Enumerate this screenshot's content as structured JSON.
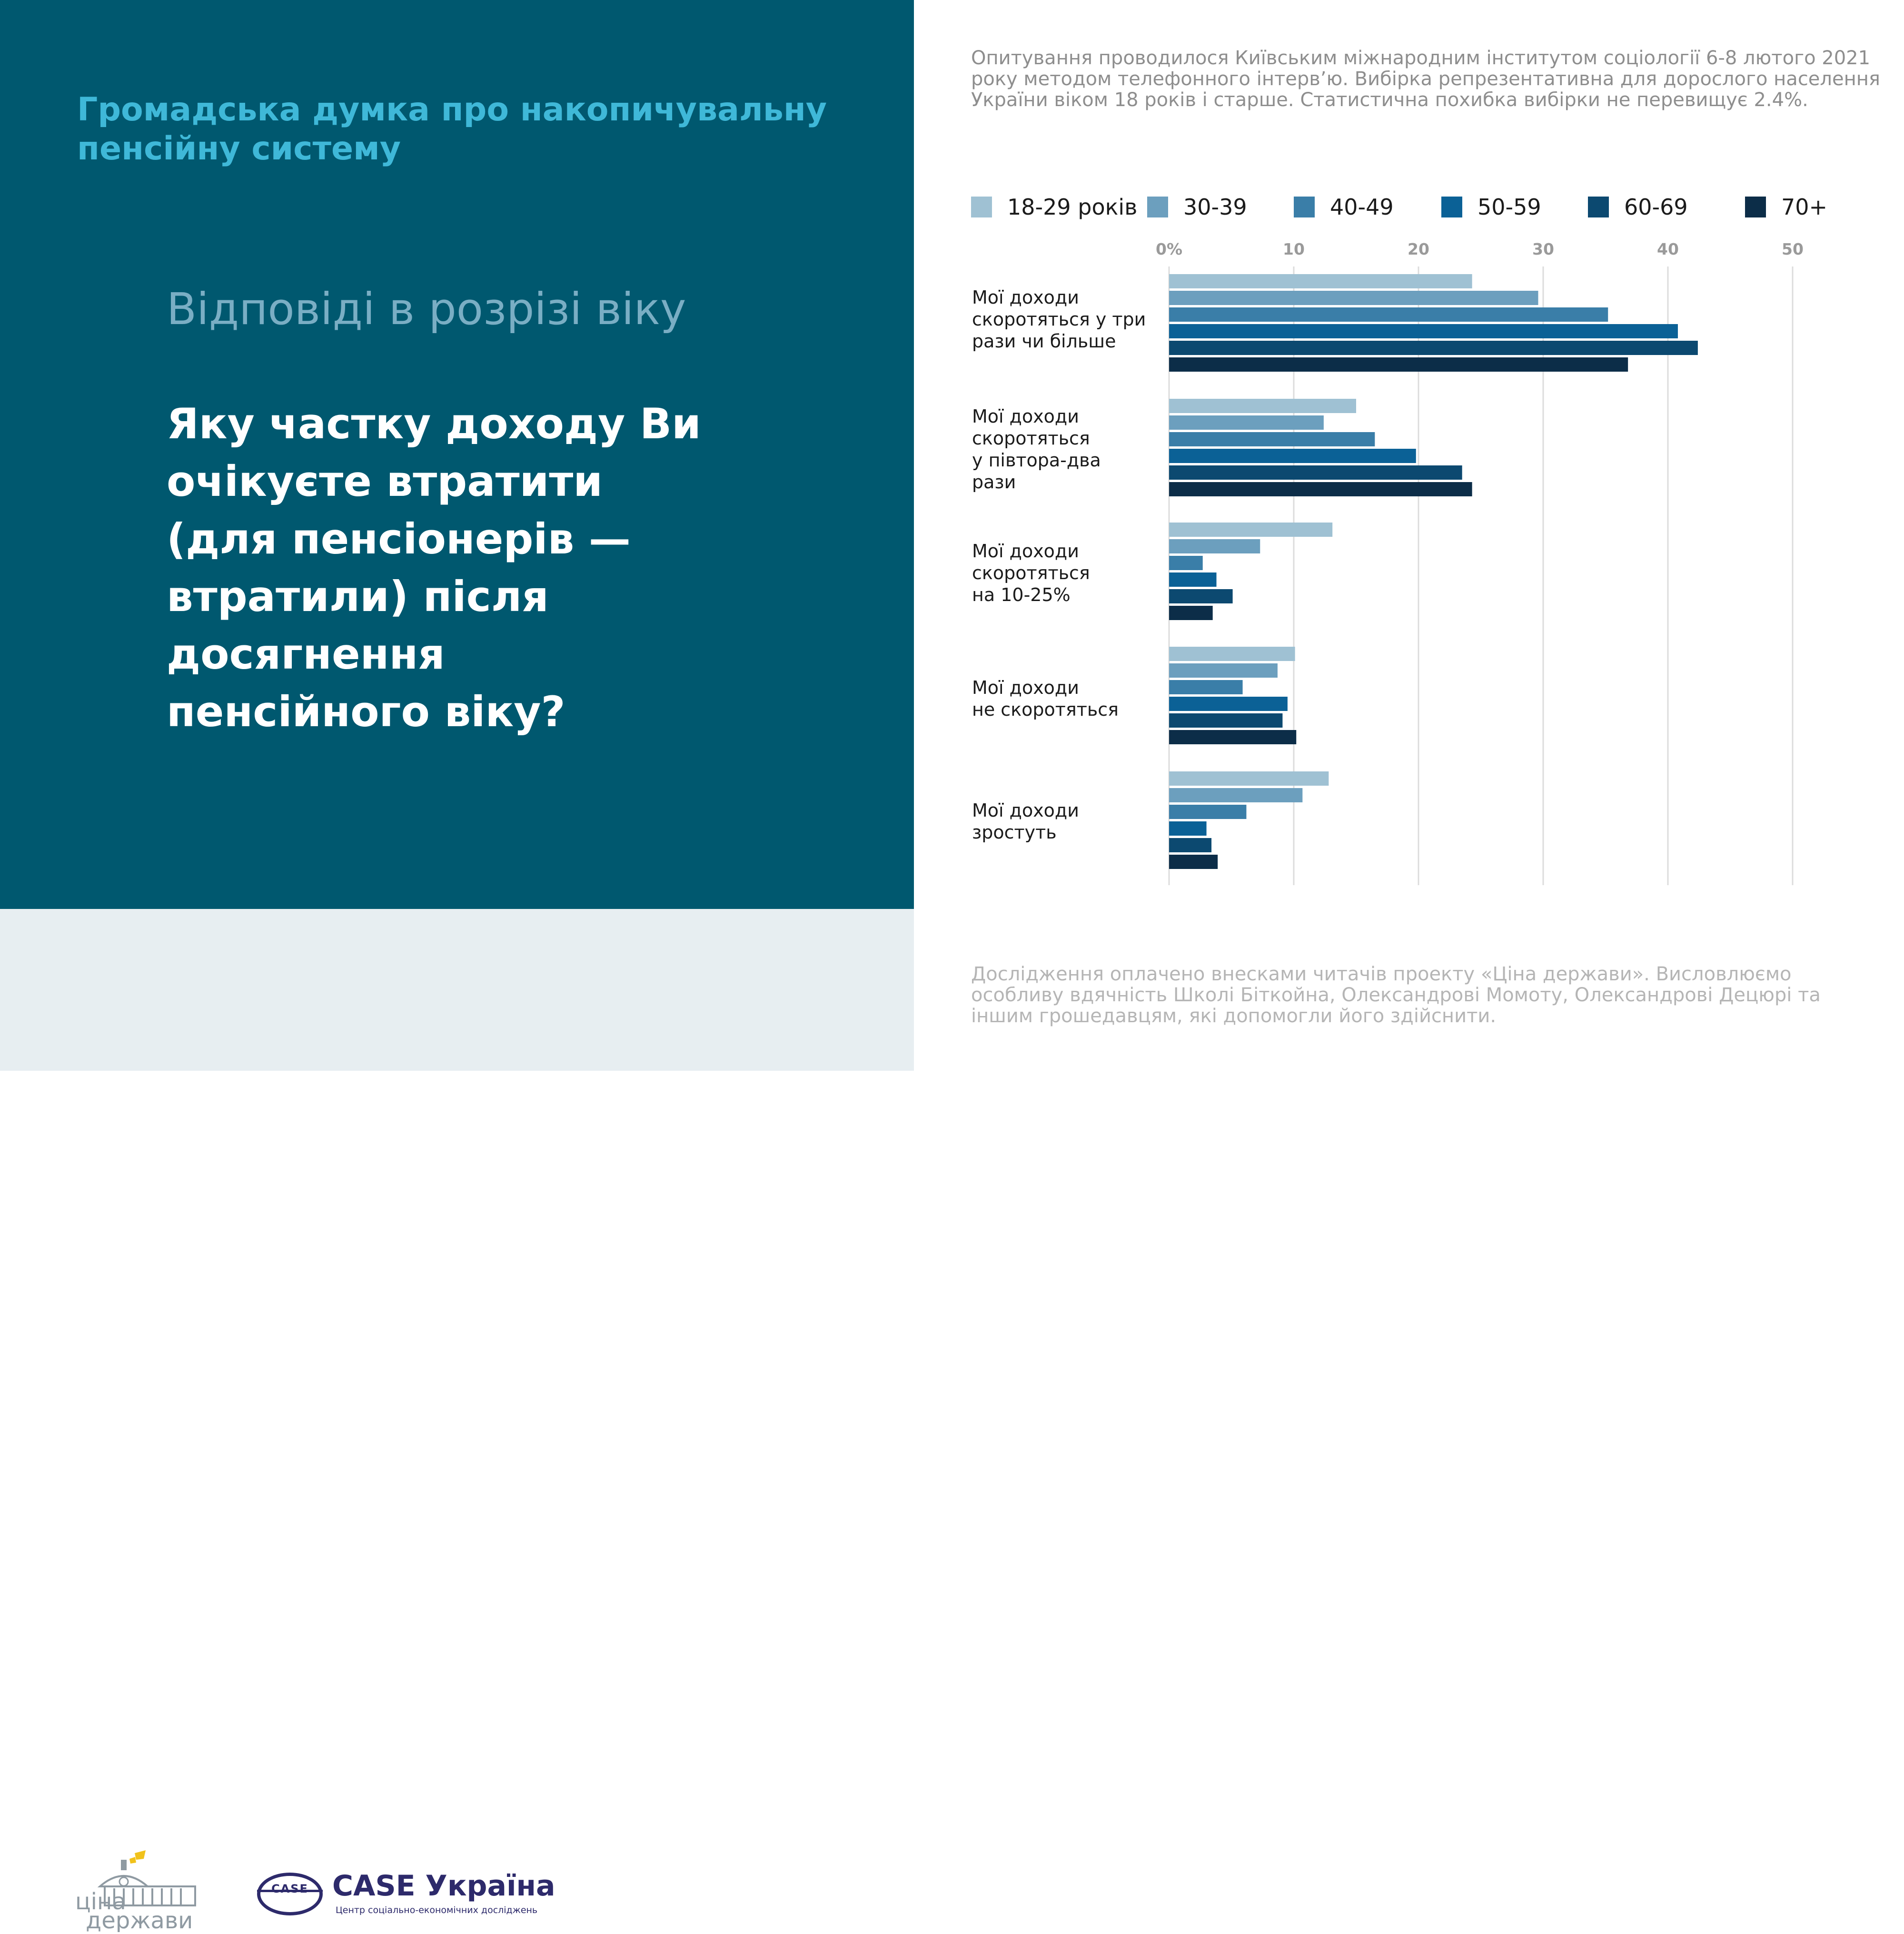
{
  "header": {
    "title_lines": [
      "Громадська думка про накопичувальну",
      "пенсійну систему"
    ]
  },
  "subtitle": "Відповіді в розрізі віку",
  "question_lines": [
    "Яку частку доходу Ви",
    "очікуєте втратити",
    "(для пенсіонерів —",
    "втратили) після",
    "досягнення",
    "пенсійного віку?"
  ],
  "method_note": "Опитування проводилося Київським міжнародним інститутом соціології 6-8 лютого 2021 року методом телефонного інтерв’ю. Вибірка репрезентативна для дорослого населення України віком 18 років і старше. Статистична похибка вибірки не перевищує 2.4%.",
  "footer_note": "Дослідження оплачено внесками читачів проекту «Ціна держави». Висловлюємо особливу вдячність Школі Біткойна, Олександрові Момоту, Олександрові Децюрі та іншим грошедавцям, які допомогли його здійснити.",
  "logos": {
    "cina_line1": "ціна",
    "cina_line2": "держави",
    "case_oval": "CASE",
    "case_name": "CASE Україна",
    "case_tagline": "Центр соціально-економічних досліджень"
  },
  "colors": {
    "panel": "#00586f",
    "title_accent": "#3fb8d8",
    "subtitle": "#7aaec4",
    "footer_bg": "#e7eef1"
  },
  "chart_data": {
    "type": "bar",
    "orientation": "horizontal",
    "xlim": [
      0,
      50
    ],
    "x_ticks": [
      "0%",
      "10",
      "20",
      "30",
      "40",
      "50"
    ],
    "grid": true,
    "legend_position": "top",
    "categories": [
      [
        "Мої доходи",
        "скоротяться у три",
        "рази чи більше"
      ],
      [
        "Мої доходи",
        "скоротяться",
        "у півтора-два",
        "рази"
      ],
      [
        "Мої доходи",
        "скоротяться",
        "на 10-25%"
      ],
      [
        "Мої доходи",
        "не скоротяться"
      ],
      [
        "Мої доходи",
        "зростуть"
      ]
    ],
    "series": [
      {
        "name": "18-29 років",
        "color": "#9fc1d3",
        "values": [
          24.3,
          15.0,
          13.1,
          10.1,
          12.8
        ]
      },
      {
        "name": "30-39",
        "color": "#6c9fbe",
        "values": [
          29.6,
          12.4,
          7.3,
          8.7,
          10.7
        ]
      },
      {
        "name": "40-49",
        "color": "#3a7ea8",
        "values": [
          35.2,
          16.5,
          2.7,
          5.9,
          6.2
        ]
      },
      {
        "name": "50-59",
        "color": "#0b6196",
        "values": [
          40.8,
          19.8,
          3.8,
          9.5,
          3.0
        ]
      },
      {
        "name": "60-69",
        "color": "#0c4970",
        "values": [
          42.4,
          23.5,
          5.1,
          9.1,
          3.4
        ]
      },
      {
        "name": "70+",
        "color": "#0c2d48",
        "values": [
          36.8,
          24.3,
          3.5,
          10.2,
          3.9
        ]
      }
    ]
  }
}
